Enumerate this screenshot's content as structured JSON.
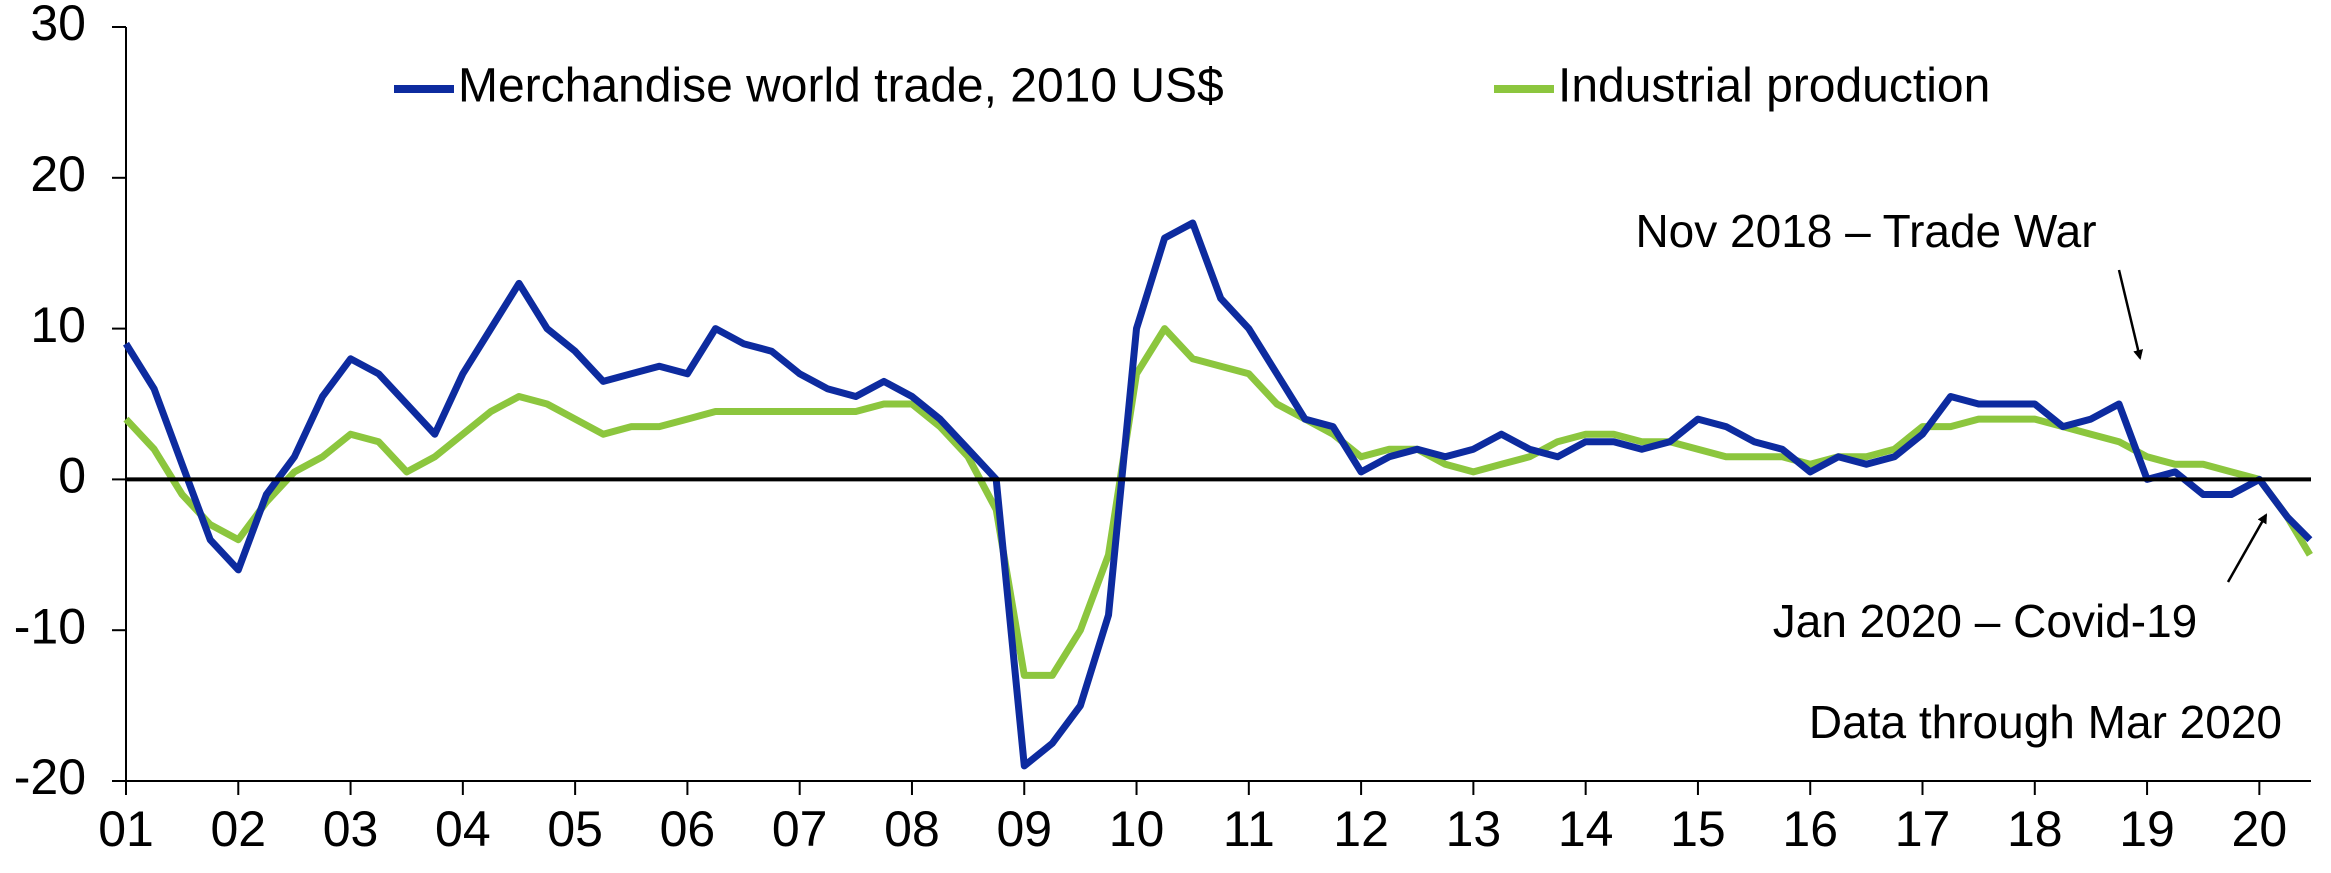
{
  "chart_data": {
    "type": "line",
    "x": [
      1,
      1.25,
      1.5,
      1.75,
      2,
      2.25,
      2.5,
      2.75,
      3,
      3.25,
      3.5,
      3.75,
      4,
      4.25,
      4.5,
      4.75,
      5,
      5.25,
      5.5,
      5.75,
      6,
      6.25,
      6.5,
      6.75,
      7,
      7.25,
      7.5,
      7.75,
      8,
      8.25,
      8.5,
      8.75,
      9,
      9.25,
      9.5,
      9.75,
      10,
      10.25,
      10.5,
      10.75,
      11,
      11.25,
      11.5,
      11.75,
      12,
      12.25,
      12.5,
      12.75,
      13,
      13.25,
      13.5,
      13.75,
      14,
      14.25,
      14.5,
      14.75,
      15,
      15.25,
      15.5,
      15.75,
      16,
      16.25,
      16.5,
      16.75,
      17,
      17.25,
      17.5,
      17.75,
      18,
      18.25,
      18.5,
      18.75,
      19,
      19.25,
      19.5,
      19.75,
      20,
      20.25,
      20.45
    ],
    "series": [
      {
        "name": "Merchandise world trade, 2010 US$",
        "color": "#0d2b9f",
        "values": [
          9,
          6,
          1,
          -4,
          -6,
          -1,
          1.5,
          5.5,
          8,
          7,
          5,
          3,
          7,
          10,
          13,
          10,
          8.5,
          6.5,
          7,
          7.5,
          7,
          10,
          9,
          8.5,
          7,
          6,
          5.5,
          6.5,
          5.5,
          4,
          2,
          0,
          -19,
          -17.5,
          -15,
          -9,
          10,
          16,
          17,
          12,
          10,
          7,
          4,
          3.5,
          0.5,
          1.5,
          2,
          1.5,
          2,
          3,
          2,
          1.5,
          2.5,
          2.5,
          2,
          2.5,
          4,
          3.5,
          2.5,
          2,
          0.5,
          1.5,
          1,
          1.5,
          3,
          5.5,
          5,
          5,
          5,
          3.5,
          4,
          5,
          0,
          0.5,
          -1,
          -1,
          0,
          -2.5,
          -4
        ]
      },
      {
        "name": "Industrial production",
        "color": "#8cc63e",
        "values": [
          4,
          2,
          -1,
          -3,
          -4,
          -1.5,
          0.5,
          1.5,
          3,
          2.5,
          0.5,
          1.5,
          3,
          4.5,
          5.5,
          5,
          4,
          3,
          3.5,
          3.5,
          4,
          4.5,
          4.5,
          4.5,
          4.5,
          4.5,
          4.5,
          5,
          5,
          3.5,
          1.5,
          -2,
          -13,
          -13,
          -10,
          -5,
          7,
          10,
          8,
          7.5,
          7,
          5,
          4,
          3,
          1.5,
          2,
          2,
          1,
          0.5,
          1,
          1.5,
          2.5,
          3,
          3,
          2.5,
          2.5,
          2,
          1.5,
          1.5,
          1.5,
          1,
          1.5,
          1.5,
          2,
          3.5,
          3.5,
          4,
          4,
          4,
          3.5,
          3,
          2.5,
          1.5,
          1,
          1,
          0.5,
          0,
          -2.5,
          -5
        ]
      }
    ],
    "xlim": [
      1,
      20.46
    ],
    "xticks": [
      {
        "value": 1,
        "label": "01"
      },
      {
        "value": 2,
        "label": "02"
      },
      {
        "value": 3,
        "label": "03"
      },
      {
        "value": 4,
        "label": "04"
      },
      {
        "value": 5,
        "label": "05"
      },
      {
        "value": 6,
        "label": "06"
      },
      {
        "value": 7,
        "label": "07"
      },
      {
        "value": 8,
        "label": "08"
      },
      {
        "value": 9,
        "label": "09"
      },
      {
        "value": 10,
        "label": "10"
      },
      {
        "value": 11,
        "label": "11"
      },
      {
        "value": 12,
        "label": "12"
      },
      {
        "value": 13,
        "label": "13"
      },
      {
        "value": 14,
        "label": "14"
      },
      {
        "value": 15,
        "label": "15"
      },
      {
        "value": 16,
        "label": "16"
      },
      {
        "value": 17,
        "label": "17"
      },
      {
        "value": 18,
        "label": "18"
      },
      {
        "value": 19,
        "label": "19"
      },
      {
        "value": 20,
        "label": "20"
      }
    ],
    "ylim": [
      -20,
      30
    ],
    "yticks": [
      -20,
      -10,
      0,
      10,
      20,
      30
    ],
    "legend": "top",
    "annotations": [
      "Nov 2018 – Trade War",
      "Jan 2020 – Covid-19",
      "Data through Mar 2020"
    ]
  }
}
